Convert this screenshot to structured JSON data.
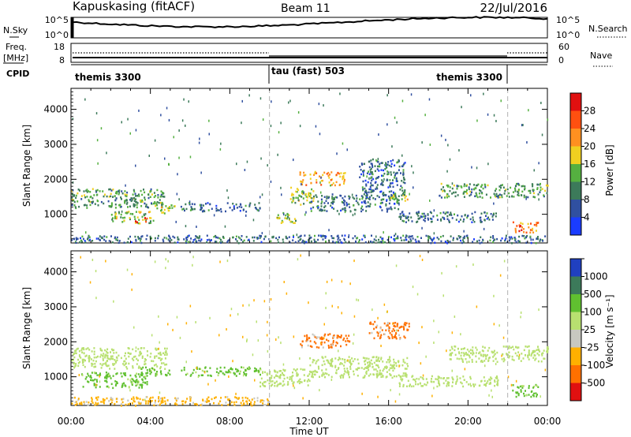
{
  "header": {
    "station": "Kapuskasing (fitACF)",
    "beam": "Beam 11",
    "date": "22/Jul/2016"
  },
  "top_panels": {
    "nsky_label": "N.Sky",
    "nsky_ticks": [
      "10^5",
      "10^0"
    ],
    "nsearch_label": "N.Search",
    "nsearch_ticks": [
      "10^5",
      "10^0"
    ],
    "freq_label_1": "Freq.",
    "freq_label_2": "[MHz]",
    "freq_ticks": [
      "18",
      "8"
    ],
    "nave_label": "Nave",
    "nave_ticks": [
      "60",
      "0"
    ],
    "cpid_label": "CPID",
    "cpid_segments": [
      {
        "label": "themis 3300",
        "start": 0,
        "end": 10
      },
      {
        "label": "tau (fast) 503",
        "start": 10,
        "end": 22
      },
      {
        "label": "themis 3300",
        "start": 22,
        "end": 24
      }
    ]
  },
  "time_axis": {
    "title": "Time UT",
    "ticks": [
      "00:00",
      "04:00",
      "08:00",
      "12:00",
      "16:00",
      "20:00",
      "00:00"
    ],
    "range_hours": [
      0,
      24
    ]
  },
  "range_axis": {
    "title": "Slant Range [km]",
    "ticks": [
      "1000",
      "2000",
      "3000",
      "4000"
    ],
    "range_km": [
      180,
      4600
    ]
  },
  "power_scale": {
    "title": "Power [dB]",
    "ticks": [
      "4",
      "8",
      "12",
      "16",
      "20",
      "24",
      "28"
    ],
    "colors": [
      "#1a3cff",
      "#3050a0",
      "#3c7a5a",
      "#55b040",
      "#f0d020",
      "#ff9020",
      "#ff5010",
      "#e01010"
    ]
  },
  "velocity_scale": {
    "title": "Velocity [m s⁻¹]",
    "ticks": [
      "1000",
      "500",
      "100",
      "25",
      "-25",
      "-100",
      "-500",
      "-1000"
    ],
    "colors": [
      "#2040c0",
      "#3c7a5a",
      "#60c030",
      "#b8e070",
      "#c8c8c0",
      "#ffb000",
      "#ff7000",
      "#e01010"
    ]
  },
  "chart_data": [
    {
      "type": "heatmap",
      "title": "",
      "xlabel": "Time UT",
      "ylabel": "Slant Range [km]",
      "colorbar": "Power [dB]",
      "xlim": [
        0,
        24
      ],
      "ylim": [
        180,
        4600
      ],
      "regions": [
        {
          "t": [
            0.0,
            4.7
          ],
          "r": [
            1200,
            1750
          ],
          "level": 12
        },
        {
          "t": [
            2.0,
            4.2
          ],
          "r": [
            750,
            1100
          ],
          "level": 16
        },
        {
          "t": [
            3.2,
            3.8
          ],
          "r": [
            780,
            980
          ],
          "level": 28
        },
        {
          "t": [
            4.2,
            5.2
          ],
          "r": [
            1050,
            1300
          ],
          "level": 16
        },
        {
          "t": [
            5.5,
            9.5
          ],
          "r": [
            1100,
            1350
          ],
          "level": 8
        },
        {
          "t": [
            10.3,
            11.3
          ],
          "r": [
            750,
            1100
          ],
          "level": 16
        },
        {
          "t": [
            11.0,
            12.2
          ],
          "r": [
            1300,
            1800
          ],
          "level": 16
        },
        {
          "t": [
            11.5,
            13.8
          ],
          "r": [
            1850,
            2250
          ],
          "level": 20
        },
        {
          "t": [
            12.0,
            16.5
          ],
          "r": [
            1100,
            1600
          ],
          "level": 8
        },
        {
          "t": [
            14.5,
            16.8
          ],
          "r": [
            1600,
            2600
          ],
          "level": 8
        },
        {
          "t": [
            16.0,
            17.0
          ],
          "r": [
            1400,
            1650
          ],
          "level": 16
        },
        {
          "t": [
            16.5,
            21.5
          ],
          "r": [
            800,
            1100
          ],
          "level": 8
        },
        {
          "t": [
            18.5,
            24.0
          ],
          "r": [
            1500,
            1900
          ],
          "level": 12
        },
        {
          "t": [
            22.2,
            23.5
          ],
          "r": [
            500,
            800
          ],
          "level": 24
        },
        {
          "t": [
            0.0,
            24.0
          ],
          "r": [
            200,
            420
          ],
          "level": 8
        }
      ]
    },
    {
      "type": "heatmap",
      "title": "",
      "xlabel": "Time UT",
      "ylabel": "Slant Range [km]",
      "colorbar": "Velocity [m s⁻¹]",
      "xlim": [
        0,
        24
      ],
      "ylim": [
        180,
        4600
      ],
      "regions": [
        {
          "t": [
            0.0,
            4.8
          ],
          "r": [
            1250,
            1850
          ],
          "level": 25
        },
        {
          "t": [
            0.5,
            4.0
          ],
          "r": [
            700,
            1150
          ],
          "level": 100
        },
        {
          "t": [
            3.5,
            5.0
          ],
          "r": [
            1050,
            1300
          ],
          "level": 100
        },
        {
          "t": [
            5.5,
            9.5
          ],
          "r": [
            1050,
            1300
          ],
          "level": 100
        },
        {
          "t": [
            9.5,
            12.0
          ],
          "r": [
            750,
            1250
          ],
          "level": 25
        },
        {
          "t": [
            11.5,
            14.0
          ],
          "r": [
            1850,
            2250
          ],
          "level": -500
        },
        {
          "t": [
            12.0,
            17.0
          ],
          "r": [
            1000,
            1600
          ],
          "level": 25
        },
        {
          "t": [
            15.0,
            17.0
          ],
          "r": [
            2100,
            2600
          ],
          "level": -500
        },
        {
          "t": [
            16.5,
            21.5
          ],
          "r": [
            750,
            1050
          ],
          "level": 25
        },
        {
          "t": [
            19.0,
            24.0
          ],
          "r": [
            1450,
            1900
          ],
          "level": 25
        },
        {
          "t": [
            22.2,
            23.5
          ],
          "r": [
            450,
            800
          ],
          "level": 100
        },
        {
          "t": [
            0.0,
            10.0
          ],
          "r": [
            200,
            450
          ],
          "level": -100
        }
      ]
    }
  ]
}
